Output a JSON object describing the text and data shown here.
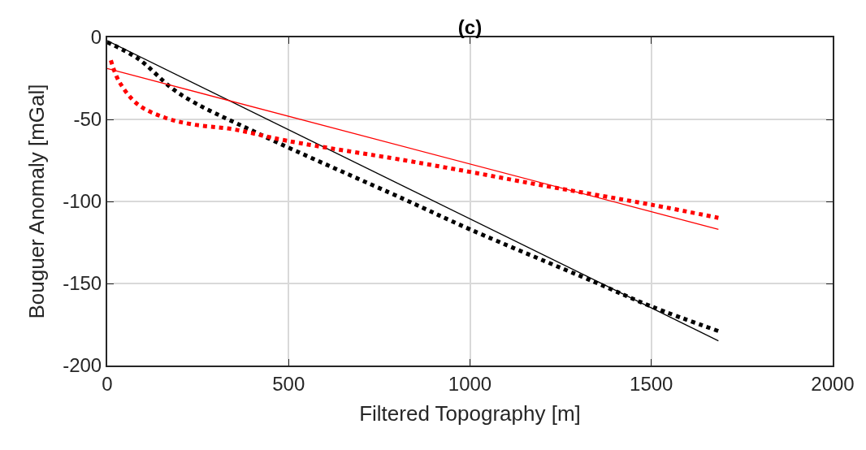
{
  "chart_data": {
    "type": "line",
    "title": "(c)",
    "xlabel": "Filtered Topography [m]",
    "ylabel": "Bouguer Anomaly [mGal]",
    "xlim": [
      0,
      2000
    ],
    "xticks": [
      0,
      500,
      1000,
      1500,
      2000
    ],
    "ylim": [
      -200,
      0
    ],
    "yticks": [
      -200,
      -150,
      -100,
      -50,
      0
    ],
    "grid": true,
    "series": [
      {
        "color": "#000000",
        "line_style": "dotted",
        "x": [
          0,
          85,
          197,
          420,
          822,
          1000,
          1342,
          1500,
          1685
        ],
        "values": [
          -3,
          -13,
          -34,
          -59,
          -99,
          -117,
          -149,
          -164,
          -179
        ]
      },
      {
        "color": "#000000",
        "line_style": "solid",
        "x": [
          0,
          1685
        ],
        "values": [
          -2,
          -185
        ]
      },
      {
        "color": "#ff0000",
        "line_style": "dotted",
        "x": [
          10,
          33,
          85,
          160,
          234,
          346,
          495,
          822,
          1000,
          1194,
          1500,
          1685
        ],
        "values": [
          -14,
          -27,
          -41,
          -49,
          -53,
          -56,
          -63,
          -75,
          -82,
          -90,
          -102,
          -110
        ]
      },
      {
        "color": "#ff0000",
        "line_style": "solid",
        "x": [
          0,
          1685
        ],
        "values": [
          -19,
          -117
        ]
      }
    ]
  }
}
